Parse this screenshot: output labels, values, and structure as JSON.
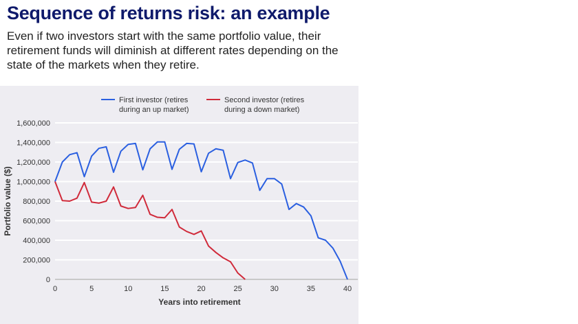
{
  "title": "Sequence of returns risk: an example",
  "subtitle": "Even if two investors start with the same portfolio value, their retirement funds will diminish at different rates depending on the state of the markets when they retire.",
  "colors": {
    "first": "#2a5fe0",
    "second": "#d02a3a",
    "title": "#0f1a6b"
  },
  "chart_data": {
    "type": "line",
    "xlabel": "Years into retirement",
    "ylabel": "Portfolio value ($)",
    "xlim": [
      0,
      40
    ],
    "ylim": [
      0,
      1600000
    ],
    "xticks": [
      0,
      5,
      10,
      15,
      20,
      25,
      30,
      35,
      40
    ],
    "yticks": [
      0,
      200000,
      400000,
      600000,
      800000,
      1000000,
      1200000,
      1400000,
      1600000
    ],
    "ytick_labels": [
      "0",
      "200,000",
      "400,000",
      "600,000",
      "800,000",
      "1,000,000",
      "1,200,000",
      "1,400,000",
      "1,600,000"
    ],
    "grid": "horizontal",
    "legend_placement": "top",
    "series": [
      {
        "name": "First investor (retires during an up market)",
        "legend_lines": [
          "First investor (retires",
          "during an up market)"
        ],
        "color": "#2a5fe0",
        "x": [
          0,
          1,
          2,
          3,
          4,
          5,
          6,
          7,
          8,
          9,
          10,
          11,
          12,
          13,
          14,
          15,
          16,
          17,
          18,
          19,
          20,
          21,
          22,
          23,
          24,
          25,
          26,
          27,
          28,
          29,
          30,
          31,
          32,
          33,
          34,
          35,
          36,
          37,
          38,
          39,
          40
        ],
        "values": [
          1000000,
          1200000,
          1275000,
          1295000,
          1050000,
          1260000,
          1340000,
          1355000,
          1095000,
          1310000,
          1380000,
          1390000,
          1120000,
          1335000,
          1405000,
          1405000,
          1125000,
          1330000,
          1390000,
          1385000,
          1100000,
          1290000,
          1335000,
          1320000,
          1030000,
          1195000,
          1220000,
          1190000,
          910000,
          1030000,
          1030000,
          975000,
          715000,
          775000,
          740000,
          650000,
          425000,
          400000,
          320000,
          185000,
          0
        ]
      },
      {
        "name": "Second investor (retires during a down market)",
        "legend_lines": [
          "Second investor (retires",
          "during a down market)"
        ],
        "color": "#d02a3a",
        "x": [
          0,
          1,
          2,
          3,
          4,
          5,
          6,
          7,
          8,
          9,
          10,
          11,
          12,
          13,
          14,
          15,
          16,
          17,
          18,
          19,
          20,
          21,
          22,
          23,
          24,
          25,
          26
        ],
        "values": [
          1000000,
          805000,
          800000,
          830000,
          990000,
          790000,
          780000,
          800000,
          945000,
          750000,
          725000,
          735000,
          860000,
          665000,
          635000,
          630000,
          715000,
          535000,
          490000,
          460000,
          495000,
          340000,
          275000,
          220000,
          180000,
          65000,
          0
        ]
      }
    ]
  }
}
